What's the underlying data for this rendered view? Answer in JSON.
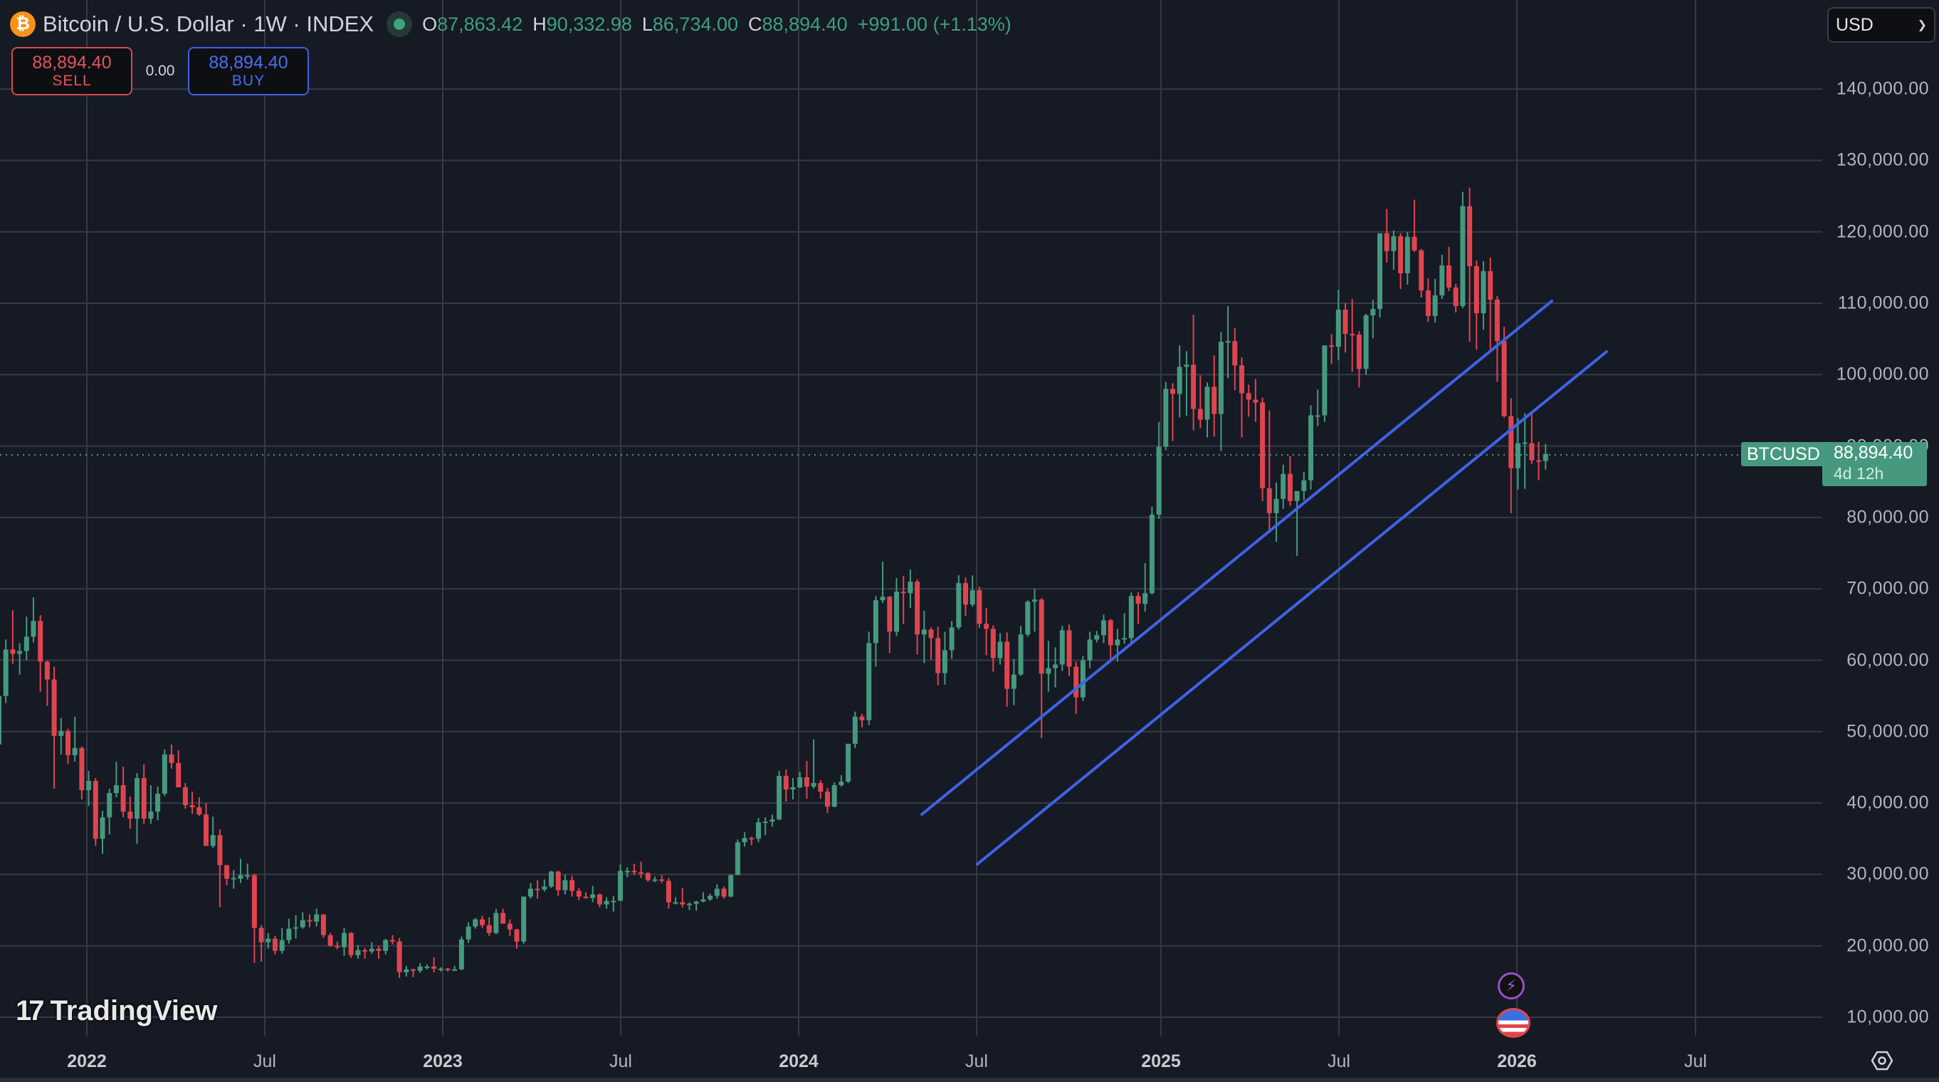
{
  "header": {
    "coin_icon": "bitcoin-icon",
    "coin_glyph": "₿",
    "title": "Bitcoin / U.S. Dollar · 1W · INDEX",
    "ohlc": [
      {
        "key": "O",
        "value": "87,863.42"
      },
      {
        "key": "H",
        "value": "90,332.98"
      },
      {
        "key": "L",
        "value": "86,734.00"
      },
      {
        "key": "C",
        "value": "88,894.40"
      }
    ],
    "change": "+991.00 (+1.13%)"
  },
  "trade": {
    "sell_price": "88,894.40",
    "sell_label": "SELL",
    "spread": "0.00",
    "buy_price": "88,894.40",
    "buy_label": "BUY"
  },
  "currency": {
    "selected": "USD",
    "icon": "chevron-down-icon"
  },
  "price_axis": {
    "labels": [
      "140,000.00",
      "130,000.00",
      "120,000.00",
      "110,000.00",
      "100,000.00",
      "90,000.00",
      "80,000.00",
      "70,000.00",
      "60,000.00",
      "50,000.00",
      "40,000.00",
      "30,000.00",
      "20,000.00",
      "10,000.00"
    ]
  },
  "time_axis": {
    "labels": [
      {
        "text": "2022",
        "year": true
      },
      {
        "text": "Jul",
        "year": false
      },
      {
        "text": "2023",
        "year": true
      },
      {
        "text": "Jul",
        "year": false
      },
      {
        "text": "2024",
        "year": true
      },
      {
        "text": "Jul",
        "year": false
      },
      {
        "text": "2025",
        "year": true
      },
      {
        "text": "Jul",
        "year": false
      },
      {
        "text": "2026",
        "year": true
      },
      {
        "text": "Jul",
        "year": false
      }
    ]
  },
  "last_price": {
    "symbol": "BTCUSD",
    "price": "88,894.40",
    "countdown": "4d 12h"
  },
  "branding": {
    "logo_mark": "17",
    "logo_text": "TradingView"
  },
  "events": [
    {
      "icon": "lightning-icon",
      "glyph": "⚡"
    },
    {
      "icon": "us-flag-icon"
    }
  ],
  "colors": {
    "up": "#26a69a",
    "up_render": "#46997e",
    "down": "#e0454f",
    "trendline": "#3d63e6",
    "grid": "#363a45",
    "background": "#161a25"
  },
  "chart_data": {
    "type": "candlestick",
    "title": "Bitcoin / U.S. Dollar · 1W · INDEX",
    "xlabel": "",
    "ylabel": "USD",
    "ylim": [
      8000,
      150000
    ],
    "grid": true,
    "y_ticks": [
      10000,
      20000,
      30000,
      40000,
      50000,
      60000,
      70000,
      80000,
      90000,
      100000,
      110000,
      120000,
      130000,
      140000
    ],
    "x_ticks": [
      "2022",
      "Jul",
      "2023",
      "Jul",
      "2024",
      "Jul",
      "2025",
      "Jul",
      "2026",
      "Jul"
    ],
    "first_week": "2021-10-04",
    "interval": "1W",
    "series_format": "[open, high, low, close] in thousands USD",
    "candles": [
      [
        48.2,
        56.6,
        47.0,
        55.0
      ],
      [
        55.0,
        62.9,
        54.0,
        61.5
      ],
      [
        61.5,
        67.0,
        59.5,
        60.9
      ],
      [
        60.9,
        62.4,
        58.0,
        61.3
      ],
      [
        61.3,
        66.1,
        60.0,
        63.3
      ],
      [
        63.3,
        68.8,
        62.5,
        65.5
      ],
      [
        65.5,
        66.3,
        55.6,
        59.8
      ],
      [
        59.8,
        59.9,
        53.6,
        57.3
      ],
      [
        57.3,
        59.1,
        42.0,
        49.4
      ],
      [
        49.4,
        51.9,
        46.8,
        50.1
      ],
      [
        50.1,
        50.4,
        45.5,
        46.7
      ],
      [
        46.7,
        52.1,
        45.8,
        47.7
      ],
      [
        47.7,
        47.9,
        40.5,
        41.8
      ],
      [
        41.8,
        44.5,
        39.6,
        43.1
      ],
      [
        43.1,
        43.5,
        34.0,
        35.0
      ],
      [
        35.0,
        38.9,
        32.9,
        38.0
      ],
      [
        38.0,
        42.0,
        35.6,
        41.4
      ],
      [
        41.4,
        45.8,
        40.8,
        42.5
      ],
      [
        42.5,
        45.1,
        38.0,
        38.8
      ],
      [
        38.8,
        40.9,
        36.4,
        37.8
      ],
      [
        37.8,
        44.2,
        34.3,
        43.5
      ],
      [
        43.5,
        45.4,
        37.1,
        37.8
      ],
      [
        37.8,
        42.5,
        37.1,
        38.8
      ],
      [
        38.8,
        42.3,
        37.6,
        41.3
      ],
      [
        41.3,
        47.5,
        41.0,
        46.8
      ],
      [
        46.8,
        48.2,
        44.8,
        45.6
      ],
      [
        45.6,
        47.4,
        42.5,
        42.2
      ],
      [
        42.2,
        42.8,
        39.2,
        39.7
      ],
      [
        39.7,
        41.6,
        38.5,
        39.4
      ],
      [
        39.4,
        40.8,
        38.2,
        38.4
      ],
      [
        38.4,
        40.0,
        37.6,
        34.0
      ],
      [
        34.0,
        38.1,
        33.7,
        35.5
      ],
      [
        35.5,
        36.3,
        25.4,
        31.3
      ],
      [
        31.3,
        31.3,
        28.5,
        29.4
      ],
      [
        29.4,
        30.6,
        28.0,
        29.5
      ],
      [
        29.4,
        32.2,
        28.8,
        29.9
      ],
      [
        29.9,
        31.5,
        29.3,
        29.9
      ],
      [
        29.9,
        30.1,
        17.6,
        22.5
      ],
      [
        22.5,
        22.9,
        17.8,
        20.5
      ],
      [
        20.5,
        21.8,
        19.6,
        21.0
      ],
      [
        21.0,
        21.4,
        18.8,
        19.3
      ],
      [
        19.3,
        22.5,
        18.9,
        20.8
      ],
      [
        20.8,
        23.8,
        20.3,
        22.4
      ],
      [
        22.4,
        24.3,
        21.0,
        22.6
      ],
      [
        22.6,
        24.7,
        22.4,
        23.6
      ],
      [
        23.6,
        24.4,
        22.6,
        23.4
      ],
      [
        23.4,
        25.2,
        22.7,
        24.4
      ],
      [
        24.4,
        24.4,
        21.1,
        21.5
      ],
      [
        21.5,
        21.8,
        19.9,
        20.0
      ],
      [
        20.0,
        20.6,
        19.5,
        19.8
      ],
      [
        19.8,
        22.5,
        18.6,
        21.8
      ],
      [
        21.8,
        21.9,
        18.3,
        18.7
      ],
      [
        18.7,
        20.1,
        18.2,
        19.4
      ],
      [
        19.4,
        19.7,
        18.2,
        19.2
      ],
      [
        19.2,
        20.5,
        18.9,
        19.6
      ],
      [
        19.6,
        20.0,
        18.2,
        19.3
      ],
      [
        19.3,
        21.0,
        18.8,
        20.8
      ],
      [
        20.8,
        21.5,
        20.2,
        20.6
      ],
      [
        20.6,
        21.1,
        15.5,
        16.3
      ],
      [
        16.3,
        17.2,
        15.7,
        16.7
      ],
      [
        16.7,
        16.8,
        15.6,
        16.5
      ],
      [
        16.5,
        17.6,
        16.2,
        17.1
      ],
      [
        17.1,
        17.4,
        16.7,
        17.1
      ],
      [
        17.1,
        18.4,
        16.3,
        16.8
      ],
      [
        16.8,
        17.0,
        16.4,
        16.8
      ],
      [
        16.8,
        16.9,
        16.4,
        16.6
      ],
      [
        16.6,
        17.2,
        16.5,
        16.7
      ],
      [
        16.7,
        21.3,
        16.6,
        20.9
      ],
      [
        20.9,
        23.3,
        20.4,
        22.7
      ],
      [
        22.7,
        23.9,
        22.4,
        23.7
      ],
      [
        23.7,
        24.2,
        22.5,
        22.9
      ],
      [
        22.9,
        24.0,
        21.4,
        21.8
      ],
      [
        21.8,
        25.2,
        21.6,
        24.6
      ],
      [
        24.6,
        25.2,
        23.2,
        23.1
      ],
      [
        23.1,
        23.7,
        21.4,
        22.3
      ],
      [
        22.3,
        22.4,
        19.6,
        20.6
      ],
      [
        20.6,
        26.5,
        20.3,
        26.9
      ],
      [
        26.9,
        28.8,
        26.6,
        28.0
      ],
      [
        28.0,
        29.2,
        26.6,
        27.9
      ],
      [
        27.9,
        29.3,
        27.6,
        28.3
      ],
      [
        28.3,
        30.5,
        28.1,
        30.4
      ],
      [
        30.4,
        30.5,
        27.0,
        27.8
      ],
      [
        27.8,
        30.0,
        27.2,
        29.2
      ],
      [
        29.2,
        29.8,
        26.9,
        27.7
      ],
      [
        27.7,
        28.1,
        26.4,
        26.9
      ],
      [
        26.9,
        27.5,
        26.6,
        26.7
      ],
      [
        26.7,
        28.4,
        26.1,
        27.2
      ],
      [
        27.2,
        27.3,
        25.4,
        25.8
      ],
      [
        25.8,
        26.8,
        25.2,
        26.3
      ],
      [
        26.3,
        27.0,
        24.8,
        26.3
      ],
      [
        26.3,
        31.4,
        26.3,
        30.5
      ],
      [
        30.5,
        31.0,
        29.6,
        30.5
      ],
      [
        30.5,
        31.5,
        29.9,
        30.3
      ],
      [
        30.3,
        31.8,
        29.5,
        30.2
      ],
      [
        30.2,
        30.3,
        29.0,
        29.2
      ],
      [
        29.2,
        29.7,
        28.9,
        29.3
      ],
      [
        29.3,
        29.9,
        28.8,
        29.1
      ],
      [
        29.1,
        29.5,
        25.2,
        26.1
      ],
      [
        26.1,
        26.8,
        25.8,
        26.1
      ],
      [
        26.1,
        28.1,
        25.4,
        25.8
      ],
      [
        25.8,
        26.1,
        25.0,
        25.9
      ],
      [
        25.9,
        26.3,
        24.9,
        26.2
      ],
      [
        26.2,
        27.5,
        26.1,
        26.5
      ],
      [
        26.5,
        27.3,
        26.3,
        27.0
      ],
      [
        27.0,
        28.6,
        26.6,
        28.0
      ],
      [
        28.0,
        28.3,
        26.6,
        26.9
      ],
      [
        26.9,
        30.0,
        26.8,
        29.9
      ],
      [
        29.9,
        34.9,
        29.9,
        34.5
      ],
      [
        34.5,
        35.9,
        33.9,
        35.1
      ],
      [
        35.1,
        35.3,
        34.1,
        35.0
      ],
      [
        35.0,
        37.9,
        34.5,
        37.3
      ],
      [
        37.3,
        38.0,
        35.5,
        37.4
      ],
      [
        37.4,
        38.4,
        36.7,
        37.7
      ],
      [
        37.7,
        44.5,
        37.6,
        43.8
      ],
      [
        43.8,
        44.7,
        40.2,
        41.9
      ],
      [
        41.9,
        43.5,
        40.5,
        42.2
      ],
      [
        42.2,
        44.4,
        42.1,
        43.6
      ],
      [
        43.6,
        45.9,
        40.6,
        42.3
      ],
      [
        42.3,
        48.9,
        42.0,
        42.8
      ],
      [
        42.8,
        43.2,
        40.6,
        41.6
      ],
      [
        41.6,
        42.1,
        38.6,
        39.5
      ],
      [
        39.5,
        42.9,
        39.4,
        42.5
      ],
      [
        42.5,
        43.9,
        42.3,
        43.0
      ],
      [
        43.0,
        48.2,
        42.8,
        48.3
      ],
      [
        48.3,
        52.8,
        47.7,
        52.1
      ],
      [
        52.1,
        52.5,
        50.6,
        51.6
      ],
      [
        51.6,
        64.0,
        50.9,
        62.4
      ],
      [
        62.4,
        69.0,
        59.1,
        68.4
      ],
      [
        68.4,
        73.8,
        68.0,
        68.9
      ],
      [
        68.9,
        69.0,
        61.0,
        64.0
      ],
      [
        64.0,
        71.5,
        63.4,
        69.6
      ],
      [
        69.6,
        71.8,
        65.1,
        69.4
      ],
      [
        69.4,
        72.7,
        67.3,
        71.0
      ],
      [
        71.0,
        71.3,
        60.8,
        63.6
      ],
      [
        63.6,
        66.9,
        59.6,
        64.3
      ],
      [
        64.3,
        64.6,
        60.1,
        63.1
      ],
      [
        63.1,
        64.7,
        56.5,
        58.2
      ],
      [
        58.2,
        64.0,
        56.6,
        61.4
      ],
      [
        61.4,
        65.5,
        60.2,
        64.6
      ],
      [
        64.6,
        71.9,
        64.3,
        70.8
      ],
      [
        70.8,
        71.6,
        66.2,
        67.8
      ],
      [
        67.8,
        71.9,
        67.5,
        69.8
      ],
      [
        69.8,
        70.3,
        64.5,
        65.1
      ],
      [
        65.1,
        67.3,
        60.7,
        64.4
      ],
      [
        64.4,
        64.9,
        58.4,
        60.3
      ],
      [
        60.3,
        63.8,
        59.4,
        62.6
      ],
      [
        62.6,
        63.9,
        53.5,
        56.0
      ],
      [
        56.0,
        60.2,
        53.7,
        58.0
      ],
      [
        58.0,
        64.8,
        57.8,
        63.6
      ],
      [
        63.6,
        68.4,
        63.3,
        68.2
      ],
      [
        68.2,
        70.0,
        64.0,
        68.5
      ],
      [
        68.5,
        68.7,
        49.1,
        58.1
      ],
      [
        58.1,
        62.7,
        55.6,
        58.9
      ],
      [
        58.9,
        61.8,
        56.2,
        59.4
      ],
      [
        59.4,
        64.8,
        58.5,
        64.2
      ],
      [
        64.2,
        65.0,
        57.8,
        59.1
      ],
      [
        59.1,
        59.8,
        52.5,
        54.8
      ],
      [
        54.8,
        60.6,
        54.3,
        60.0
      ],
      [
        60.0,
        64.0,
        58.9,
        62.9
      ],
      [
        62.9,
        64.1,
        62.5,
        63.5
      ],
      [
        63.5,
        66.4,
        62.4,
        65.6
      ],
      [
        65.6,
        65.8,
        60.1,
        62.1
      ],
      [
        62.1,
        64.4,
        59.8,
        62.9
      ],
      [
        62.9,
        66.6,
        62.3,
        63.1
      ],
      [
        63.1,
        69.5,
        62.2,
        69.0
      ],
      [
        69.0,
        69.5,
        65.1,
        67.9
      ],
      [
        67.9,
        73.6,
        66.8,
        69.4
      ],
      [
        69.4,
        81.5,
        69.2,
        80.4
      ],
      [
        80.4,
        93.4,
        79.8,
        89.9
      ],
      [
        89.9,
        99.0,
        89.4,
        98.0
      ],
      [
        98.0,
        98.8,
        90.7,
        97.3
      ],
      [
        97.3,
        104.1,
        94.0,
        101.1
      ],
      [
        101.1,
        103.3,
        94.2,
        101.4
      ],
      [
        101.4,
        108.4,
        92.2,
        95.2
      ],
      [
        95.2,
        99.9,
        92.5,
        93.7
      ],
      [
        93.7,
        98.9,
        91.2,
        98.3
      ],
      [
        98.3,
        102.7,
        91.3,
        94.5
      ],
      [
        94.5,
        106.0,
        89.3,
        104.6
      ],
      [
        104.6,
        109.6,
        99.5,
        104.7
      ],
      [
        104.7,
        106.5,
        97.8,
        101.3
      ],
      [
        101.3,
        102.4,
        91.2,
        97.4
      ],
      [
        97.4,
        98.6,
        94.1,
        96.5
      ],
      [
        96.5,
        99.4,
        93.4,
        96.1
      ],
      [
        96.1,
        96.8,
        82.3,
        84.1
      ],
      [
        84.1,
        95.0,
        78.2,
        80.6
      ],
      [
        80.6,
        84.9,
        76.6,
        82.6
      ],
      [
        82.6,
        87.4,
        81.2,
        86.1
      ],
      [
        86.1,
        88.6,
        81.6,
        82.3
      ],
      [
        82.3,
        83.5,
        74.6,
        83.7
      ],
      [
        83.7,
        86.4,
        82.4,
        85.2
      ],
      [
        85.2,
        95.7,
        83.9,
        94.3
      ],
      [
        94.3,
        97.9,
        92.8,
        94.3
      ],
      [
        94.3,
        104.0,
        93.4,
        104.1
      ],
      [
        104.1,
        105.7,
        101.5,
        103.9
      ],
      [
        103.9,
        111.9,
        102.0,
        109.1
      ],
      [
        109.1,
        110.0,
        103.1,
        105.7
      ],
      [
        105.7,
        110.6,
        100.4,
        105.6
      ],
      [
        105.6,
        106.1,
        98.2,
        100.8
      ],
      [
        100.8,
        108.5,
        100.0,
        108.3
      ],
      [
        108.3,
        110.5,
        105.1,
        109.2
      ],
      [
        109.2,
        119.5,
        108.0,
        119.8
      ],
      [
        119.8,
        123.2,
        115.7,
        117.3
      ],
      [
        117.3,
        120.2,
        114.7,
        119.4
      ],
      [
        119.4,
        119.8,
        112.0,
        114.2
      ],
      [
        114.2,
        120.0,
        112.6,
        119.3
      ],
      [
        119.3,
        124.5,
        117.2,
        117.4
      ],
      [
        117.4,
        117.6,
        110.8,
        111.8
      ],
      [
        111.8,
        113.5,
        107.4,
        108.2
      ],
      [
        108.2,
        113.4,
        107.3,
        111.1
      ],
      [
        111.1,
        116.8,
        110.6,
        115.3
      ],
      [
        115.3,
        117.9,
        111.7,
        112.2
      ],
      [
        112.2,
        112.7,
        108.7,
        109.6
      ],
      [
        109.6,
        125.6,
        109.3,
        123.6
      ],
      [
        123.6,
        126.2,
        104.6,
        115.2
      ],
      [
        115.2,
        116.0,
        103.5,
        108.6
      ],
      [
        108.6,
        115.9,
        106.3,
        114.5
      ],
      [
        114.5,
        116.4,
        103.5,
        110.5
      ],
      [
        110.5,
        111.0,
        99.0,
        104.7
      ],
      [
        104.7,
        106.7,
        94.0,
        94.2
      ],
      [
        94.2,
        96.7,
        80.6,
        86.9
      ],
      [
        86.9,
        93.9,
        83.9,
        90.4
      ],
      [
        90.4,
        94.6,
        84.0,
        90.5
      ],
      [
        90.4,
        94.6,
        87.5,
        88.0
      ],
      [
        88.0,
        90.6,
        85.2,
        87.8
      ],
      [
        87.9,
        90.3,
        86.7,
        88.9
      ]
    ],
    "trendlines": [
      {
        "from": {
          "date": "2024-05",
          "price": 38500
        },
        "to": {
          "date": "2026-02",
          "price": 110200
        }
      },
      {
        "from": {
          "date": "2024-07",
          "price": 31500
        },
        "to": {
          "date": "2026-04",
          "price": 103200
        }
      }
    ],
    "last_price": 88894.4
  }
}
